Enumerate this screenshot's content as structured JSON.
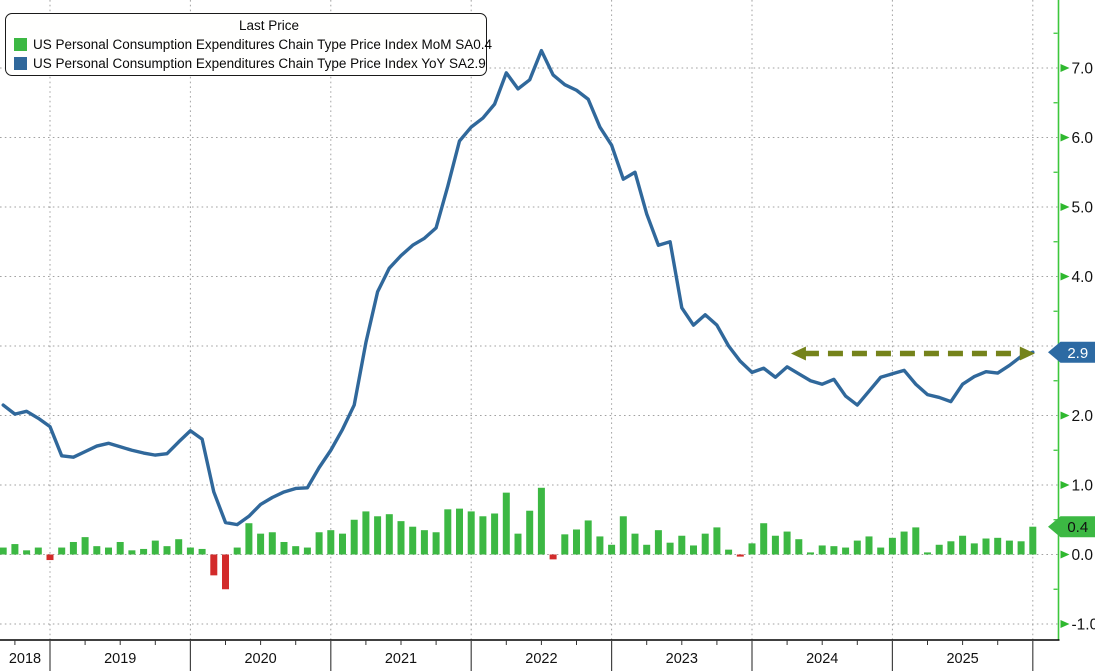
{
  "legend": {
    "title": "Last Price",
    "series": [
      {
        "label": "US Personal Consumption Expenditures Chain Type Price Index MoM SA",
        "value": "0.4"
      },
      {
        "label": "US Personal Consumption Expenditures Chain Type Price Index YoY SA",
        "value": "2.9"
      }
    ]
  },
  "chart_data": {
    "type": "combo",
    "title": "Last Price",
    "x_axis": {
      "unit": "month",
      "year_labels": [
        "2018",
        "2019",
        "2020",
        "2021",
        "2022",
        "2023",
        "2024",
        "2025"
      ],
      "months_before_first_year_gridline": 4,
      "points": 89
    },
    "y_axis": {
      "side": "right",
      "ticks": [
        7.0,
        6.0,
        5.0,
        4.0,
        3.0,
        2.0,
        1.0,
        0.0,
        -1.0
      ],
      "tick_labels": [
        "7.0",
        "6.0",
        "5.0",
        "4.0",
        "3.0",
        "2.0",
        "1.0",
        "0.0",
        "-1.0"
      ],
      "minor_step": 0.5,
      "ylim": [
        -1.23,
        7.98
      ]
    },
    "grid": true,
    "series": [
      {
        "name": "US Personal Consumption Expenditures Chain Type Price Index MoM SA",
        "type": "bar",
        "color": "#3cb843",
        "negative_color": "#d22b2b",
        "last_value": 0.4,
        "values": [
          0.1,
          0.15,
          0.06,
          0.1,
          -0.08,
          0.1,
          0.18,
          0.25,
          0.12,
          0.1,
          0.18,
          0.06,
          0.08,
          0.2,
          0.12,
          0.22,
          0.1,
          0.08,
          -0.3,
          -0.5,
          0.1,
          0.45,
          0.3,
          0.32,
          0.18,
          0.12,
          0.1,
          0.32,
          0.35,
          0.3,
          0.5,
          0.62,
          0.55,
          0.58,
          0.48,
          0.4,
          0.35,
          0.32,
          0.65,
          0.66,
          0.62,
          0.55,
          0.59,
          0.89,
          0.3,
          0.63,
          0.96,
          -0.07,
          0.29,
          0.36,
          0.49,
          0.26,
          0.14,
          0.55,
          0.3,
          0.14,
          0.35,
          0.17,
          0.27,
          0.13,
          0.3,
          0.39,
          0.07,
          -0.03,
          0.16,
          0.45,
          0.27,
          0.33,
          0.22,
          0.03,
          0.13,
          0.12,
          0.1,
          0.2,
          0.26,
          0.1,
          0.24,
          0.33,
          0.39,
          0.03,
          0.14,
          0.19,
          0.27,
          0.16,
          0.23,
          0.24,
          0.2,
          0.19,
          0.4
        ]
      },
      {
        "name": "US Personal Consumption Expenditures Chain Type Price Index YoY SA",
        "type": "line",
        "color": "#30689b",
        "last_value": 2.9,
        "values": [
          2.15,
          2.02,
          2.06,
          1.96,
          1.84,
          1.42,
          1.4,
          1.48,
          1.56,
          1.6,
          1.55,
          1.5,
          1.46,
          1.43,
          1.45,
          1.62,
          1.78,
          1.66,
          0.9,
          0.46,
          0.43,
          0.55,
          0.72,
          0.82,
          0.9,
          0.95,
          0.96,
          1.25,
          1.5,
          1.8,
          2.15,
          3.05,
          3.78,
          4.12,
          4.3,
          4.45,
          4.55,
          4.7,
          5.3,
          5.95,
          6.15,
          6.28,
          6.48,
          6.93,
          6.7,
          6.83,
          7.25,
          6.9,
          6.76,
          6.68,
          6.55,
          6.15,
          5.89,
          5.4,
          5.5,
          4.9,
          4.45,
          4.5,
          3.55,
          3.3,
          3.45,
          3.3,
          3.0,
          2.78,
          2.62,
          2.68,
          2.55,
          2.7,
          2.6,
          2.5,
          2.45,
          2.52,
          2.28,
          2.15,
          2.35,
          2.55,
          2.6,
          2.65,
          2.45,
          2.3,
          2.26,
          2.2,
          2.45,
          2.56,
          2.63,
          2.61,
          2.72,
          2.85,
          2.91
        ]
      }
    ],
    "annotation_arrow": {
      "level": 2.9,
      "from_i": 67.5,
      "to_i": 88,
      "color": "#75831b",
      "style": "dashed-double-headed"
    },
    "value_tags": [
      {
        "text": "2.9",
        "value": 2.91,
        "bg": "#2d6aa3",
        "fg": "#ffffff"
      },
      {
        "text": "0.4",
        "value": 0.4,
        "bg": "#3cb843",
        "fg": "#111111"
      }
    ]
  },
  "colors": {
    "axis_green": "#3dc73d",
    "tick_arrow_green": "#2eb82e",
    "grid": "#999999",
    "frame": "#000000",
    "year_label": "#111111"
  }
}
